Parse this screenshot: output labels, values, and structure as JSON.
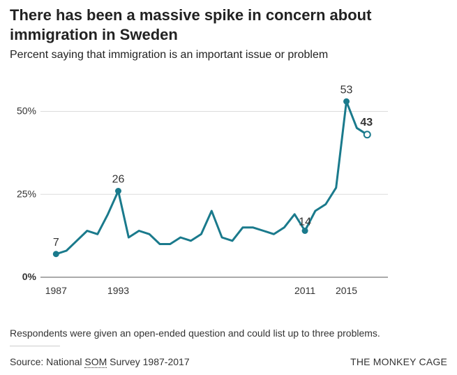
{
  "chart_data": {
    "type": "line",
    "title": "There has been a massive spike in concern about immigration in Sweden",
    "subtitle": "Percent saying that immigration is an important issue or problem",
    "xlabel": "",
    "ylabel": "",
    "xlim": [
      1985.5,
      2019
    ],
    "ylim": [
      0,
      60
    ],
    "y_ticks": [
      {
        "value": 0,
        "label": "0%"
      },
      {
        "value": 25,
        "label": "25%"
      },
      {
        "value": 50,
        "label": "50%"
      }
    ],
    "x_ticks": [
      {
        "value": 1987,
        "label": "1987"
      },
      {
        "value": 1993,
        "label": "1993"
      },
      {
        "value": 2011,
        "label": "2011"
      },
      {
        "value": 2015,
        "label": "2015"
      }
    ],
    "grid": true,
    "line_color": "#1a7a8c",
    "series": [
      {
        "x": [
          1987,
          1988,
          1989,
          1990,
          1991,
          1992,
          1993,
          1994,
          1995,
          1996,
          1997,
          1998,
          1999,
          2000,
          2001,
          2002,
          2003,
          2004,
          2005,
          2006,
          2007,
          2008,
          2009,
          2010,
          2011,
          2012,
          2013,
          2014,
          2015,
          2016,
          2017
        ],
        "values": [
          7,
          8,
          11,
          14,
          13,
          19,
          26,
          12,
          14,
          13,
          10,
          10,
          12,
          11,
          13,
          20,
          12,
          11,
          15,
          15,
          14,
          13,
          15,
          19,
          14,
          20,
          22,
          27,
          53,
          45,
          43
        ]
      }
    ],
    "annotations": [
      {
        "x": 1987,
        "y": 7,
        "label": "7",
        "marker": "filled",
        "bold": false
      },
      {
        "x": 1993,
        "y": 26,
        "label": "26",
        "marker": "filled",
        "bold": false
      },
      {
        "x": 2011,
        "y": 14,
        "label": "14",
        "marker": "filled",
        "bold": false
      },
      {
        "x": 2015,
        "y": 53,
        "label": "53",
        "marker": "filled",
        "bold": false
      },
      {
        "x": 2017,
        "y": 43,
        "label": "43",
        "marker": "open",
        "bold": true
      }
    ]
  },
  "footer": {
    "note": "Respondents were given an open-ended question and could list up to three problems.",
    "source_prefix": "Source: National ",
    "source_abbr": "SOM",
    "source_suffix": " Survey 1987-2017",
    "brand": "THE MONKEY CAGE"
  }
}
